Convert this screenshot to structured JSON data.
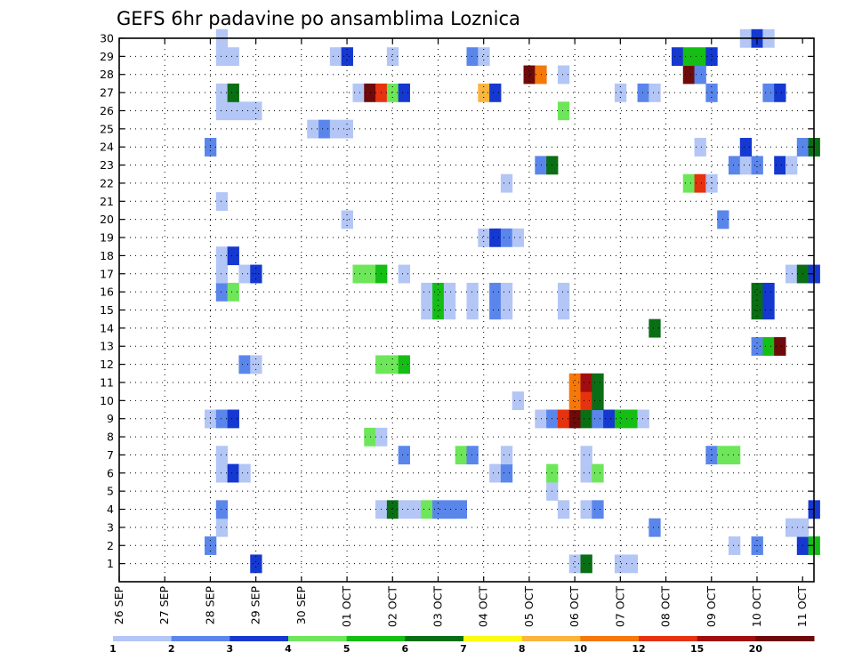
{
  "chart_data": {
    "type": "heatmap",
    "title": "GEFS 6hr padavine po ansamblima Loznica",
    "xlabel": "",
    "ylabel": "",
    "x_ticks": [
      "26 SEP",
      "27 SEP",
      "28 SEP",
      "29 SEP",
      "30 SEP",
      "01 OCT",
      "02 OCT",
      "03 OCT",
      "04 OCT",
      "05 OCT",
      "06 OCT",
      "07 OCT",
      "08 OCT",
      "09 OCT",
      "10 OCT",
      "11 OCT"
    ],
    "x_unit": "6-hour steps since 26 SEP 00Z",
    "xlim": [
      0,
      61
    ],
    "ylim": [
      0,
      30
    ],
    "y_ticks": [
      1,
      2,
      3,
      4,
      5,
      6,
      7,
      8,
      9,
      10,
      11,
      12,
      13,
      14,
      15,
      16,
      17,
      18,
      19,
      20,
      21,
      22,
      23,
      24,
      25,
      26,
      27,
      28,
      29,
      30
    ],
    "grid": true,
    "colorbar": {
      "labels": [
        "1",
        "2",
        "3",
        "4",
        "5",
        "6",
        "7",
        "8",
        "10",
        "12",
        "15",
        "20"
      ],
      "colors": [
        "#b3c6f5",
        "#5a86ec",
        "#1538d0",
        "#6ee65a",
        "#14be14",
        "#0a6e14",
        "#fbfb14",
        "#fbb43c",
        "#f5780a",
        "#e6320f",
        "#a00f0f",
        "#6e0a0a"
      ]
    },
    "cells": [
      [
        12,
        1,
        3
      ],
      [
        40,
        1,
        1
      ],
      [
        41,
        1,
        6
      ],
      [
        44,
        1,
        1
      ],
      [
        45,
        1,
        1
      ],
      [
        8,
        2,
        2
      ],
      [
        54,
        2,
        1
      ],
      [
        56,
        2,
        2
      ],
      [
        60,
        2,
        3
      ],
      [
        61,
        2,
        5
      ],
      [
        9,
        3,
        1
      ],
      [
        47,
        3,
        2
      ],
      [
        59,
        3,
        1
      ],
      [
        60,
        3,
        1
      ],
      [
        9,
        4,
        2
      ],
      [
        23,
        4,
        1
      ],
      [
        24,
        4,
        6
      ],
      [
        25,
        4,
        1
      ],
      [
        26,
        4,
        1
      ],
      [
        27,
        4,
        4
      ],
      [
        28,
        4,
        2
      ],
      [
        29,
        4,
        2
      ],
      [
        30,
        4,
        2
      ],
      [
        39,
        4,
        1
      ],
      [
        41,
        4,
        1
      ],
      [
        42,
        4,
        2
      ],
      [
        61,
        4,
        3
      ],
      [
        38,
        5,
        1
      ],
      [
        9,
        6,
        1
      ],
      [
        10,
        6,
        3
      ],
      [
        11,
        6,
        1
      ],
      [
        33,
        6,
        1
      ],
      [
        34,
        6,
        2
      ],
      [
        38,
        6,
        4
      ],
      [
        41,
        6,
        1
      ],
      [
        42,
        6,
        4
      ],
      [
        9,
        7,
        1
      ],
      [
        25,
        7,
        2
      ],
      [
        30,
        7,
        4
      ],
      [
        31,
        7,
        2
      ],
      [
        34,
        7,
        1
      ],
      [
        41,
        7,
        1
      ],
      [
        52,
        7,
        2
      ],
      [
        53,
        7,
        4
      ],
      [
        54,
        7,
        4
      ],
      [
        22,
        8,
        4
      ],
      [
        23,
        8,
        1
      ],
      [
        8,
        9,
        1
      ],
      [
        9,
        9,
        2
      ],
      [
        10,
        9,
        3
      ],
      [
        37,
        9,
        1
      ],
      [
        38,
        9,
        2
      ],
      [
        39,
        9,
        14
      ],
      [
        40,
        9,
        20
      ],
      [
        41,
        9,
        6
      ],
      [
        42,
        9,
        2
      ],
      [
        43,
        9,
        3
      ],
      [
        44,
        9,
        5
      ],
      [
        45,
        9,
        5
      ],
      [
        46,
        9,
        1
      ],
      [
        35,
        10,
        1
      ],
      [
        40,
        10,
        10
      ],
      [
        41,
        10,
        13
      ],
      [
        42,
        10,
        6
      ],
      [
        40,
        11,
        10
      ],
      [
        41,
        11,
        15
      ],
      [
        42,
        11,
        6
      ],
      [
        11,
        12,
        2
      ],
      [
        12,
        12,
        1
      ],
      [
        23,
        12,
        4
      ],
      [
        24,
        12,
        4
      ],
      [
        25,
        12,
        5
      ],
      [
        56,
        13,
        2
      ],
      [
        57,
        13,
        5
      ],
      [
        58,
        13,
        20
      ],
      [
        47,
        14,
        6
      ],
      [
        27,
        15,
        1
      ],
      [
        28,
        15,
        5
      ],
      [
        29,
        15,
        1
      ],
      [
        31,
        15,
        1
      ],
      [
        33,
        15,
        2
      ],
      [
        34,
        15,
        1
      ],
      [
        39,
        15,
        1
      ],
      [
        56,
        15,
        6
      ],
      [
        57,
        15,
        3
      ],
      [
        9,
        16,
        2
      ],
      [
        10,
        16,
        4
      ],
      [
        27,
        16,
        1
      ],
      [
        28,
        16,
        5
      ],
      [
        29,
        16,
        1
      ],
      [
        31,
        16,
        1
      ],
      [
        33,
        16,
        2
      ],
      [
        34,
        16,
        1
      ],
      [
        39,
        16,
        1
      ],
      [
        56,
        16,
        6
      ],
      [
        57,
        16,
        3
      ],
      [
        9,
        17,
        1
      ],
      [
        11,
        17,
        1
      ],
      [
        12,
        17,
        3
      ],
      [
        21,
        17,
        4
      ],
      [
        22,
        17,
        4
      ],
      [
        23,
        17,
        5
      ],
      [
        25,
        17,
        1
      ],
      [
        59,
        17,
        1
      ],
      [
        60,
        17,
        6
      ],
      [
        61,
        17,
        3
      ],
      [
        9,
        18,
        1
      ],
      [
        10,
        18,
        3
      ],
      [
        32,
        19,
        1
      ],
      [
        33,
        19,
        3
      ],
      [
        34,
        19,
        2
      ],
      [
        35,
        19,
        1
      ],
      [
        20,
        20,
        1
      ],
      [
        53,
        20,
        2
      ],
      [
        9,
        21,
        1
      ],
      [
        34,
        22,
        1
      ],
      [
        50,
        22,
        4
      ],
      [
        51,
        22,
        14
      ],
      [
        52,
        22,
        1
      ],
      [
        37,
        23,
        2
      ],
      [
        38,
        23,
        6
      ],
      [
        54,
        23,
        2
      ],
      [
        55,
        23,
        1
      ],
      [
        56,
        23,
        2
      ],
      [
        58,
        23,
        3
      ],
      [
        59,
        23,
        1
      ],
      [
        8,
        24,
        2
      ],
      [
        51,
        24,
        1
      ],
      [
        55,
        24,
        3
      ],
      [
        60,
        24,
        2
      ],
      [
        61,
        24,
        6
      ],
      [
        17,
        25,
        1
      ],
      [
        18,
        25,
        2
      ],
      [
        19,
        25,
        1
      ],
      [
        20,
        25,
        1
      ],
      [
        9,
        26,
        1
      ],
      [
        10,
        26,
        1
      ],
      [
        11,
        26,
        1
      ],
      [
        12,
        26,
        1
      ],
      [
        39,
        26,
        4
      ],
      [
        9,
        27,
        1
      ],
      [
        10,
        27,
        6
      ],
      [
        21,
        27,
        1
      ],
      [
        22,
        27,
        20
      ],
      [
        23,
        27,
        14
      ],
      [
        24,
        27,
        4
      ],
      [
        25,
        27,
        3
      ],
      [
        32,
        27,
        8
      ],
      [
        33,
        27,
        3
      ],
      [
        44,
        27,
        1
      ],
      [
        46,
        27,
        2
      ],
      [
        47,
        27,
        1
      ],
      [
        52,
        27,
        2
      ],
      [
        57,
        27,
        2
      ],
      [
        58,
        27,
        3
      ],
      [
        36,
        28,
        20
      ],
      [
        37,
        28,
        10
      ],
      [
        39,
        28,
        1
      ],
      [
        50,
        28,
        20
      ],
      [
        51,
        28,
        2
      ],
      [
        9,
        29,
        1
      ],
      [
        10,
        29,
        1
      ],
      [
        19,
        29,
        1
      ],
      [
        20,
        29,
        3
      ],
      [
        24,
        29,
        1
      ],
      [
        31,
        29,
        2
      ],
      [
        32,
        29,
        1
      ],
      [
        49,
        29,
        3
      ],
      [
        50,
        29,
        5
      ],
      [
        51,
        29,
        5
      ],
      [
        52,
        29,
        3
      ],
      [
        9,
        30,
        1
      ],
      [
        55,
        30,
        1
      ],
      [
        56,
        30,
        3
      ],
      [
        57,
        30,
        1
      ]
    ]
  }
}
